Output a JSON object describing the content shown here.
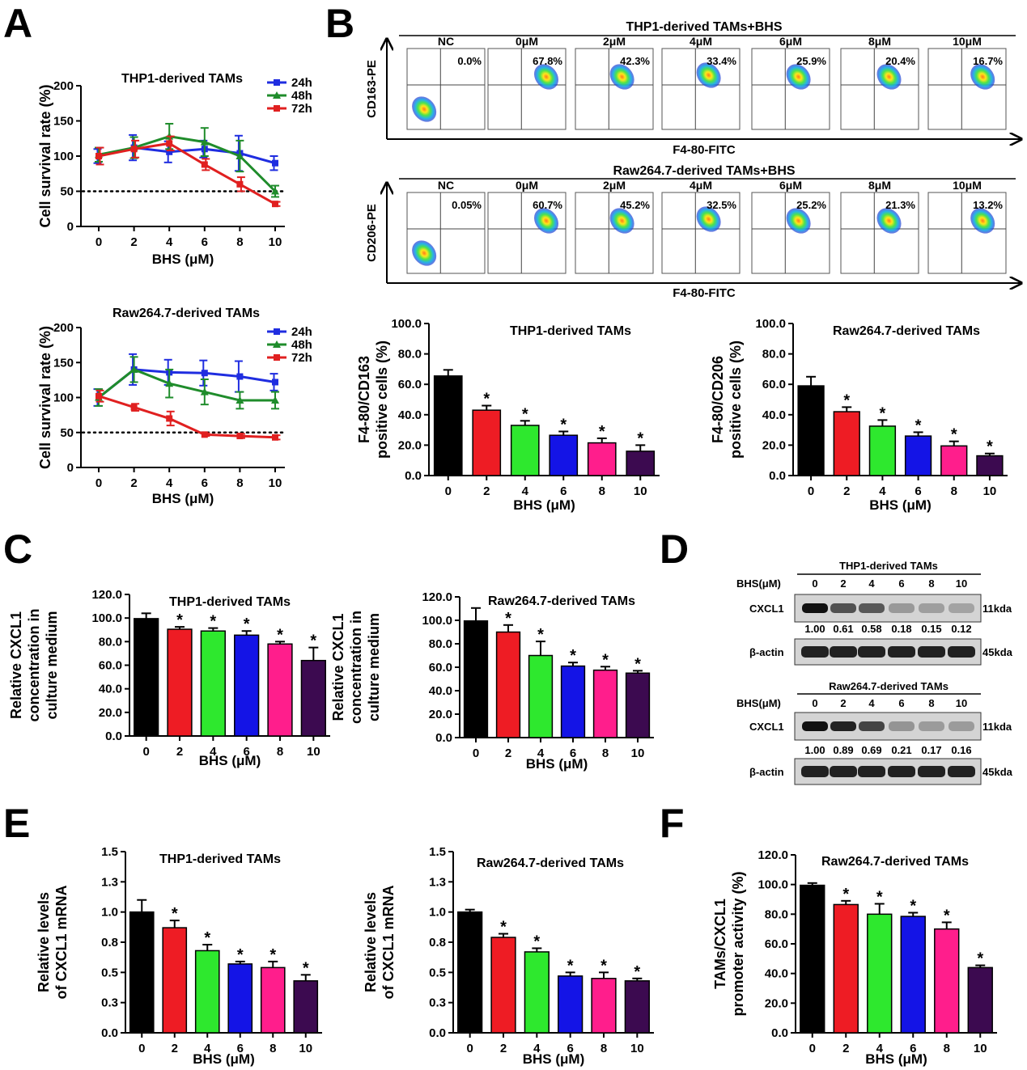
{
  "panel_letters": [
    "A",
    "B",
    "C",
    "D",
    "E",
    "F"
  ],
  "colors": {
    "c24h": "#1f2de0",
    "c48h": "#1f8c2b",
    "c72h": "#e02020",
    "bars": [
      "#000000",
      "#ee1c24",
      "#2ee82e",
      "#1414e6",
      "#ff1e8c",
      "#3c0a50"
    ]
  },
  "chart_data": [
    {
      "id": "A1",
      "type": "line",
      "title": "THP1-derived TAMs",
      "xlabel": "BHS (μM)",
      "ylabel": "Cell survival rate (%)",
      "x": [
        0,
        2,
        4,
        6,
        8,
        10
      ],
      "xticks": [
        "0",
        "2",
        "4",
        "6",
        "8",
        "10"
      ],
      "ylim": [
        0,
        200
      ],
      "yticks": [
        "0",
        "50",
        "100",
        "150",
        "200"
      ],
      "threshold": 50,
      "series": [
        {
          "name": "24h",
          "color": "#1f2de0",
          "values": [
            100,
            112,
            106,
            110,
            104,
            90
          ],
          "err": [
            10,
            18,
            15,
            12,
            25,
            10
          ]
        },
        {
          "name": "48h",
          "color": "#1f8c2b",
          "values": [
            102,
            112,
            128,
            120,
            100,
            50
          ],
          "err": [
            10,
            15,
            18,
            20,
            22,
            8
          ]
        },
        {
          "name": "72h",
          "color": "#e02020",
          "values": [
            100,
            110,
            118,
            88,
            60,
            32
          ],
          "err": [
            12,
            12,
            10,
            8,
            10,
            3
          ]
        }
      ]
    },
    {
      "id": "A2",
      "type": "line",
      "title": "Raw264.7-derived TAMs",
      "xlabel": "BHS (μM)",
      "ylabel": "Cell survival rate (%)",
      "x": [
        0,
        2,
        4,
        6,
        8,
        10
      ],
      "xticks": [
        "0",
        "2",
        "4",
        "6",
        "8",
        "10"
      ],
      "ylim": [
        0,
        200
      ],
      "yticks": [
        "0",
        "50",
        "100",
        "150",
        "200"
      ],
      "threshold": 50,
      "series": [
        {
          "name": "24h",
          "color": "#1f2de0",
          "values": [
            100,
            140,
            136,
            135,
            130,
            122
          ],
          "err": [
            12,
            22,
            18,
            18,
            22,
            12
          ]
        },
        {
          "name": "48h",
          "color": "#1f8c2b",
          "values": [
            100,
            140,
            120,
            108,
            96,
            96
          ],
          "err": [
            12,
            18,
            20,
            18,
            12,
            12
          ]
        },
        {
          "name": "72h",
          "color": "#e02020",
          "values": [
            102,
            86,
            70,
            47,
            45,
            43
          ],
          "err": [
            8,
            5,
            10,
            2,
            3,
            3
          ]
        }
      ]
    },
    {
      "id": "B1",
      "type": "bar",
      "title": "THP1-derived TAMs",
      "xlabel": "BHS (μM)",
      "ylabel": [
        "F4-80/CD163",
        "positive cells (%)"
      ],
      "categories": [
        "0",
        "2",
        "4",
        "6",
        "8",
        "10"
      ],
      "values": [
        65.5,
        43.0,
        33.0,
        26.5,
        21.5,
        16.0
      ],
      "err": [
        4,
        3,
        3,
        2.5,
        3,
        4
      ],
      "sig": [
        "",
        "*",
        "*",
        "*",
        "*",
        "*"
      ],
      "ylim": [
        0,
        100
      ],
      "yticks": [
        "0.0",
        "20.0",
        "40.0",
        "60.0",
        "80.0",
        "100.0"
      ]
    },
    {
      "id": "B2",
      "type": "bar",
      "title": "Raw264.7-derived TAMs",
      "xlabel": "BHS (μM)",
      "ylabel": [
        "F4-80/CD206",
        "positive cells (%)"
      ],
      "categories": [
        "0",
        "2",
        "4",
        "6",
        "8",
        "10"
      ],
      "values": [
        59.0,
        42.0,
        32.5,
        26.0,
        19.5,
        13.0
      ],
      "err": [
        6,
        3,
        4,
        2.5,
        3,
        1.5
      ],
      "sig": [
        "",
        "*",
        "*",
        "*",
        "*",
        "*"
      ],
      "ylim": [
        0,
        100
      ],
      "yticks": [
        "0.0",
        "20.0",
        "40.0",
        "60.0",
        "80.0",
        "100.0"
      ]
    },
    {
      "id": "C1",
      "type": "bar",
      "title": "THP1-derived TAMs",
      "xlabel": "BHS (μM)",
      "ylabel": [
        "Relative CXCL1",
        "concentration in",
        "culture medium"
      ],
      "categories": [
        "0",
        "2",
        "4",
        "6",
        "8",
        "10"
      ],
      "values": [
        99.5,
        90.5,
        89.0,
        85.5,
        78.0,
        64.0
      ],
      "err": [
        4.5,
        2,
        2.5,
        3.5,
        2,
        11
      ],
      "sig": [
        "",
        "*",
        "*",
        "*",
        "*",
        "*"
      ],
      "ylim": [
        0,
        120
      ],
      "yticks": [
        "0.0",
        "20.0",
        "40.0",
        "60.0",
        "80.0",
        "100.0",
        "120.0"
      ]
    },
    {
      "id": "C2",
      "type": "bar",
      "title": "Raw264.7-derived TAMs",
      "xlabel": "BHS (μM)",
      "ylabel": [
        "Relative CXCL1",
        "concentration in",
        "culture medium"
      ],
      "categories": [
        "0",
        "2",
        "4",
        "6",
        "8",
        "10"
      ],
      "values": [
        99.5,
        90.0,
        70.0,
        61.0,
        57.5,
        55.0
      ],
      "err": [
        11,
        6,
        12,
        3,
        3,
        2
      ],
      "sig": [
        "",
        "*",
        "*",
        "*",
        "*",
        "*"
      ],
      "ylim": [
        0,
        120
      ],
      "yticks": [
        "0.0",
        "20.0",
        "40.0",
        "60.0",
        "80.0",
        "100.0",
        "120.0"
      ]
    },
    {
      "id": "E1",
      "type": "bar",
      "title": "THP1-derived TAMs",
      "xlabel": "BHS (μM)",
      "ylabel": [
        "Relative levels",
        "of CXCL1 mRNA"
      ],
      "categories": [
        "0",
        "2",
        "4",
        "6",
        "8",
        "10"
      ],
      "values": [
        1.0,
        0.87,
        0.68,
        0.57,
        0.54,
        0.43
      ],
      "err": [
        0.1,
        0.06,
        0.05,
        0.02,
        0.05,
        0.05
      ],
      "sig": [
        "",
        "*",
        "*",
        "*",
        "*",
        "*"
      ],
      "ylim": [
        0,
        1.5
      ],
      "yticks": [
        "0.0",
        "0.3",
        "0.5",
        "0.8",
        "1.0",
        "1.3",
        "1.5"
      ]
    },
    {
      "id": "E2",
      "type": "bar",
      "title": "Raw264.7-derived TAMs",
      "xlabel": "BHS (μM)",
      "ylabel": [
        "Relative levels",
        "of CXCL1 mRNA"
      ],
      "categories": [
        "0",
        "2",
        "4",
        "6",
        "8",
        "10"
      ],
      "values": [
        1.0,
        0.79,
        0.67,
        0.47,
        0.45,
        0.43
      ],
      "err": [
        0.02,
        0.03,
        0.03,
        0.03,
        0.05,
        0.02
      ],
      "sig": [
        "",
        "*",
        "*",
        "*",
        "*",
        "*"
      ],
      "ylim": [
        0,
        1.5
      ],
      "yticks": [
        "0.0",
        "0.3",
        "0.5",
        "0.8",
        "1.0",
        "1.3",
        "1.5"
      ]
    },
    {
      "id": "F",
      "type": "bar",
      "title": "Raw264.7-derived TAMs",
      "xlabel": "BHS (μM)",
      "ylabel": [
        "TAMs/CXCL1",
        "promoter activity (%)"
      ],
      "categories": [
        "0",
        "2",
        "4",
        "6",
        "8",
        "10"
      ],
      "values": [
        99.5,
        86.5,
        80.0,
        78.5,
        70.0,
        44.0
      ],
      "err": [
        1.5,
        2.5,
        7,
        2.5,
        4.5,
        1.5
      ],
      "sig": [
        "",
        "*",
        "*",
        "*",
        "*",
        "*"
      ],
      "ylim": [
        0,
        120
      ],
      "yticks": [
        "0.0",
        "20.0",
        "40.0",
        "60.0",
        "80.0",
        "100.0",
        "120.0"
      ]
    }
  ],
  "flow": [
    {
      "title": "THP1-derived TAMs+BHS",
      "ylabel": "CD163-PE",
      "xlabel": "F4-80-FITC",
      "labels": [
        "NC",
        "0μM",
        "2μM",
        "4μM",
        "6μM",
        "8μM",
        "10μM"
      ],
      "percents": [
        "0.0%",
        "67.8%",
        "42.3%",
        "33.4%",
        "25.9%",
        "20.4%",
        "16.7%"
      ]
    },
    {
      "title": "Raw264.7-derived TAMs+BHS",
      "ylabel": "CD206-PE",
      "xlabel": "F4-80-FITC",
      "labels": [
        "NC",
        "0μM",
        "2μM",
        "4μM",
        "6μM",
        "8μM",
        "10μM"
      ],
      "percents": [
        "0.05%",
        "60.7%",
        "45.2%",
        "32.5%",
        "25.2%",
        "21.3%",
        "13.2%"
      ]
    }
  ],
  "western": [
    {
      "title": "THP1-derived TAMs",
      "treatment": "BHS(μM)",
      "doses": [
        "0",
        "2",
        "4",
        "6",
        "8",
        "10"
      ],
      "protein": "CXCL1",
      "protein_kda": "11kda",
      "ratios": [
        "1.00",
        "0.61",
        "0.58",
        "0.18",
        "0.15",
        "0.12"
      ],
      "control": "β-actin",
      "control_kda": "45kda"
    },
    {
      "title": "Raw264.7-derived TAMs",
      "treatment": "BHS(μM)",
      "doses": [
        "0",
        "2",
        "4",
        "6",
        "8",
        "10"
      ],
      "protein": "CXCL1",
      "protein_kda": "11kda",
      "ratios": [
        "1.00",
        "0.89",
        "0.69",
        "0.21",
        "0.17",
        "0.16"
      ],
      "control": "β-actin",
      "control_kda": "45kda"
    }
  ]
}
